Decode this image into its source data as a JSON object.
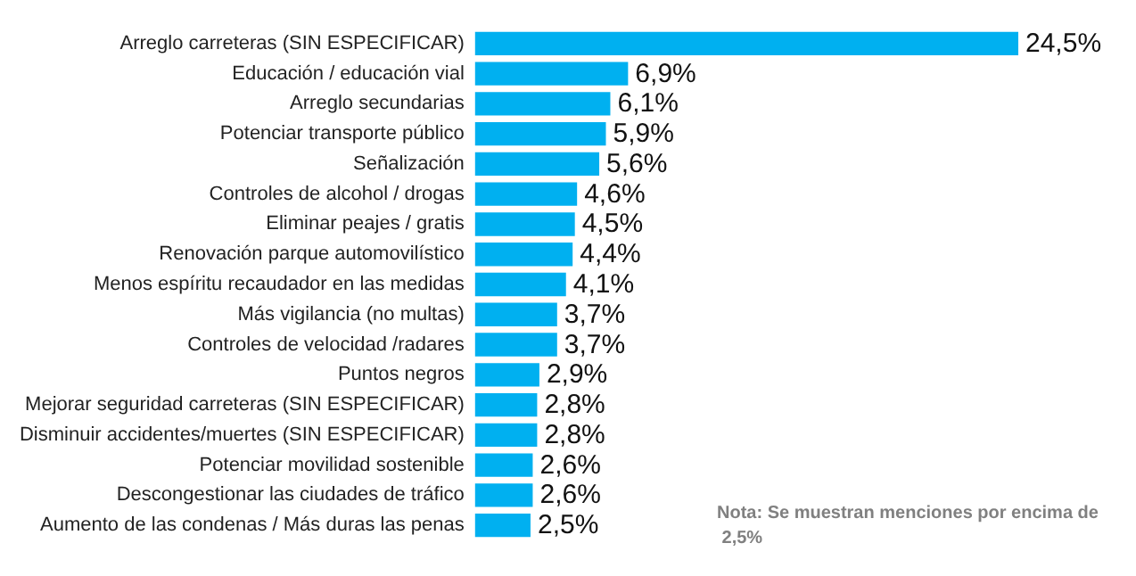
{
  "chart_data": {
    "type": "bar",
    "orientation": "horizontal",
    "categories": [
      "Arreglo carreteras (SIN ESPECIFICAR)",
      "Educación / educación vial",
      "Arreglo secundarias",
      "Potenciar transporte público",
      "Señalización",
      "Controles de alcohol / drogas",
      "Eliminar peajes / gratis",
      "Renovación parque automovilístico",
      "Menos espíritu recaudador en las medidas",
      "Más vigilancia (no multas)",
      "Controles de velocidad /radares",
      "Puntos negros",
      "Mejorar seguridad carreteras (SIN ESPECIFICAR)",
      "Disminuir accidentes/muertes (SIN ESPECIFICAR)",
      "Potenciar movilidad sostenible",
      "Descongestionar las ciudades de tráfico",
      "Aumento de las condenas / Más duras las penas"
    ],
    "values": [
      24.5,
      6.9,
      6.1,
      5.9,
      5.6,
      4.6,
      4.5,
      4.4,
      4.1,
      3.7,
      3.7,
      2.9,
      2.8,
      2.8,
      2.6,
      2.6,
      2.5
    ],
    "value_labels": [
      "24,5%",
      "6,9%",
      "6,1%",
      "5,9%",
      "5,6%",
      "4,6%",
      "4,5%",
      "4,4%",
      "4,1%",
      "3,7%",
      "3,7%",
      "2,9%",
      "2,8%",
      "2,8%",
      "2,6%",
      "2,6%",
      "2,5%"
    ],
    "color": "#00b0f0",
    "annotations": [
      "Nota: Se muestran menciones por encima de 2,5%"
    ]
  }
}
